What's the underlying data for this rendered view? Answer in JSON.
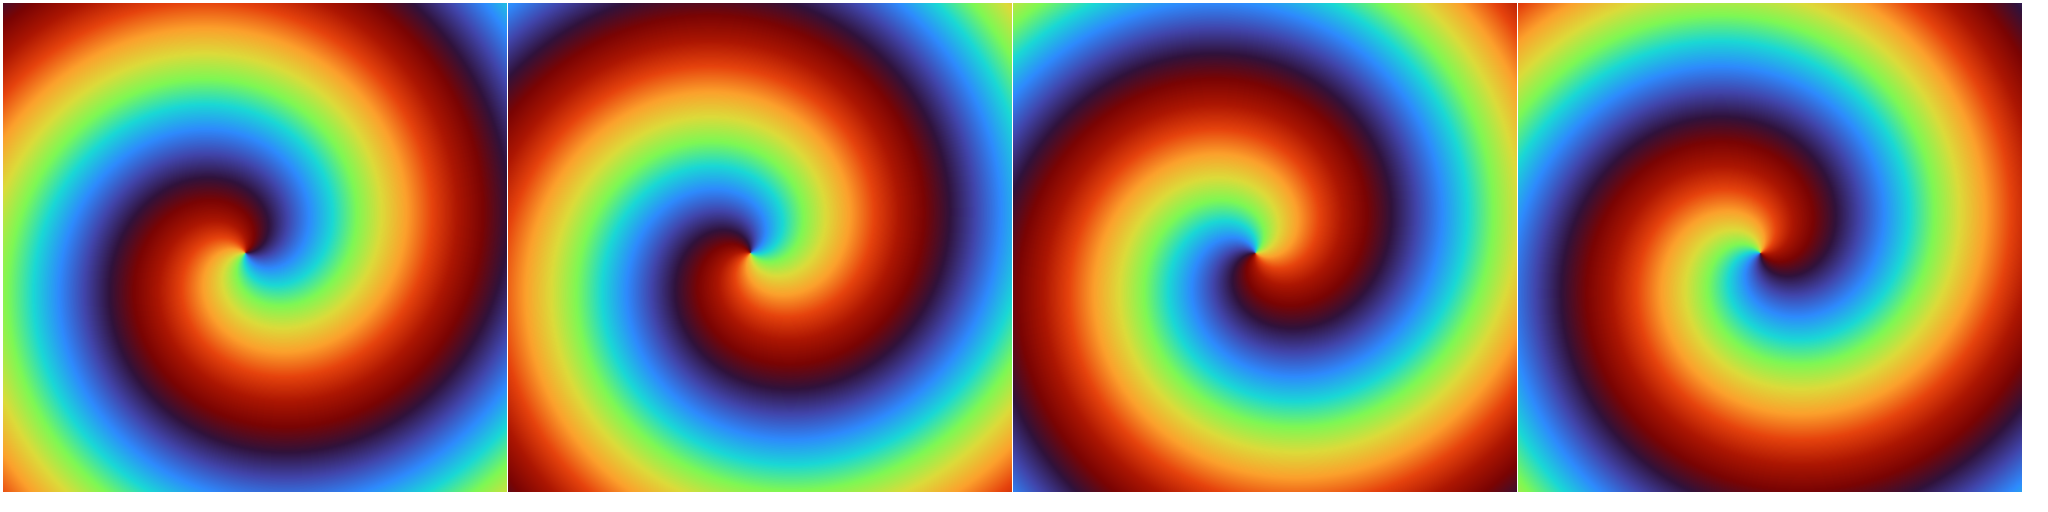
{
  "figure": {
    "description_visible_text": "",
    "colormap": [
      "#30123b",
      "#4145ab",
      "#2e8afd",
      "#1ad8d5",
      "#7ef854",
      "#dcdb3a",
      "#fca02c",
      "#e6430d",
      "#ac1602",
      "#7a0403"
    ],
    "panels": [
      {
        "name": "panel-1",
        "phase_offset": 0.0,
        "twist": 1.0,
        "direction": 1
      },
      {
        "name": "panel-2",
        "phase_offset": 0.25,
        "twist": 1.0,
        "direction": 1
      },
      {
        "name": "panel-3",
        "phase_offset": 0.5,
        "twist": 1.0,
        "direction": 1
      },
      {
        "name": "panel-4",
        "phase_offset": 0.75,
        "twist": 1.0,
        "direction": 1
      }
    ]
  }
}
